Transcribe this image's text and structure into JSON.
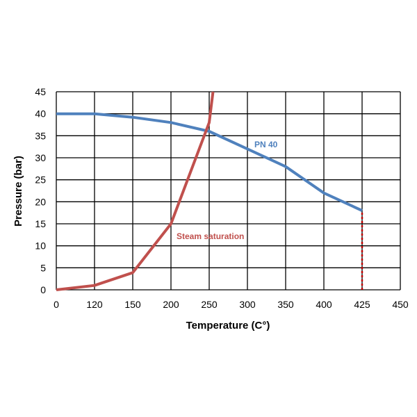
{
  "chart_data": {
    "type": "line",
    "title": "",
    "xlabel": "Temperature (C°)",
    "ylabel": "Pressure (bar)",
    "x_tick_labels": [
      "0",
      "120",
      "150",
      "200",
      "250",
      "300",
      "350",
      "400",
      "425",
      "450"
    ],
    "y_tick_labels": [
      "0",
      "5",
      "10",
      "15",
      "20",
      "25",
      "30",
      "35",
      "40",
      "45"
    ],
    "ylim": [
      0,
      45
    ],
    "grid": true,
    "legend": "none",
    "series": [
      {
        "name": "PN 40",
        "color": "#4F81BD",
        "points": [
          {
            "x": "0",
            "y": 40
          },
          {
            "x": "120",
            "y": 40
          },
          {
            "x": "150",
            "y": 39.2
          },
          {
            "x": "200",
            "y": 38
          },
          {
            "x": "250",
            "y": 36
          },
          {
            "x": "300",
            "y": 32
          },
          {
            "x": "350",
            "y": 28
          },
          {
            "x": "400",
            "y": 22
          },
          {
            "x": "425",
            "y": 18
          }
        ]
      },
      {
        "name": "Steam saturation",
        "color": "#C0504D",
        "points": [
          {
            "x": "0",
            "y": 0
          },
          {
            "x": "120",
            "y": 1
          },
          {
            "x": "150",
            "y": 3.9
          },
          {
            "x": "200",
            "y": 15
          },
          {
            "x": "250",
            "y": 38
          },
          {
            "x": "255",
            "y": 45
          }
        ]
      }
    ],
    "reference_line": {
      "x": "425",
      "y": [
        0,
        18
      ],
      "style": "dotted",
      "color": "#C00000"
    }
  }
}
